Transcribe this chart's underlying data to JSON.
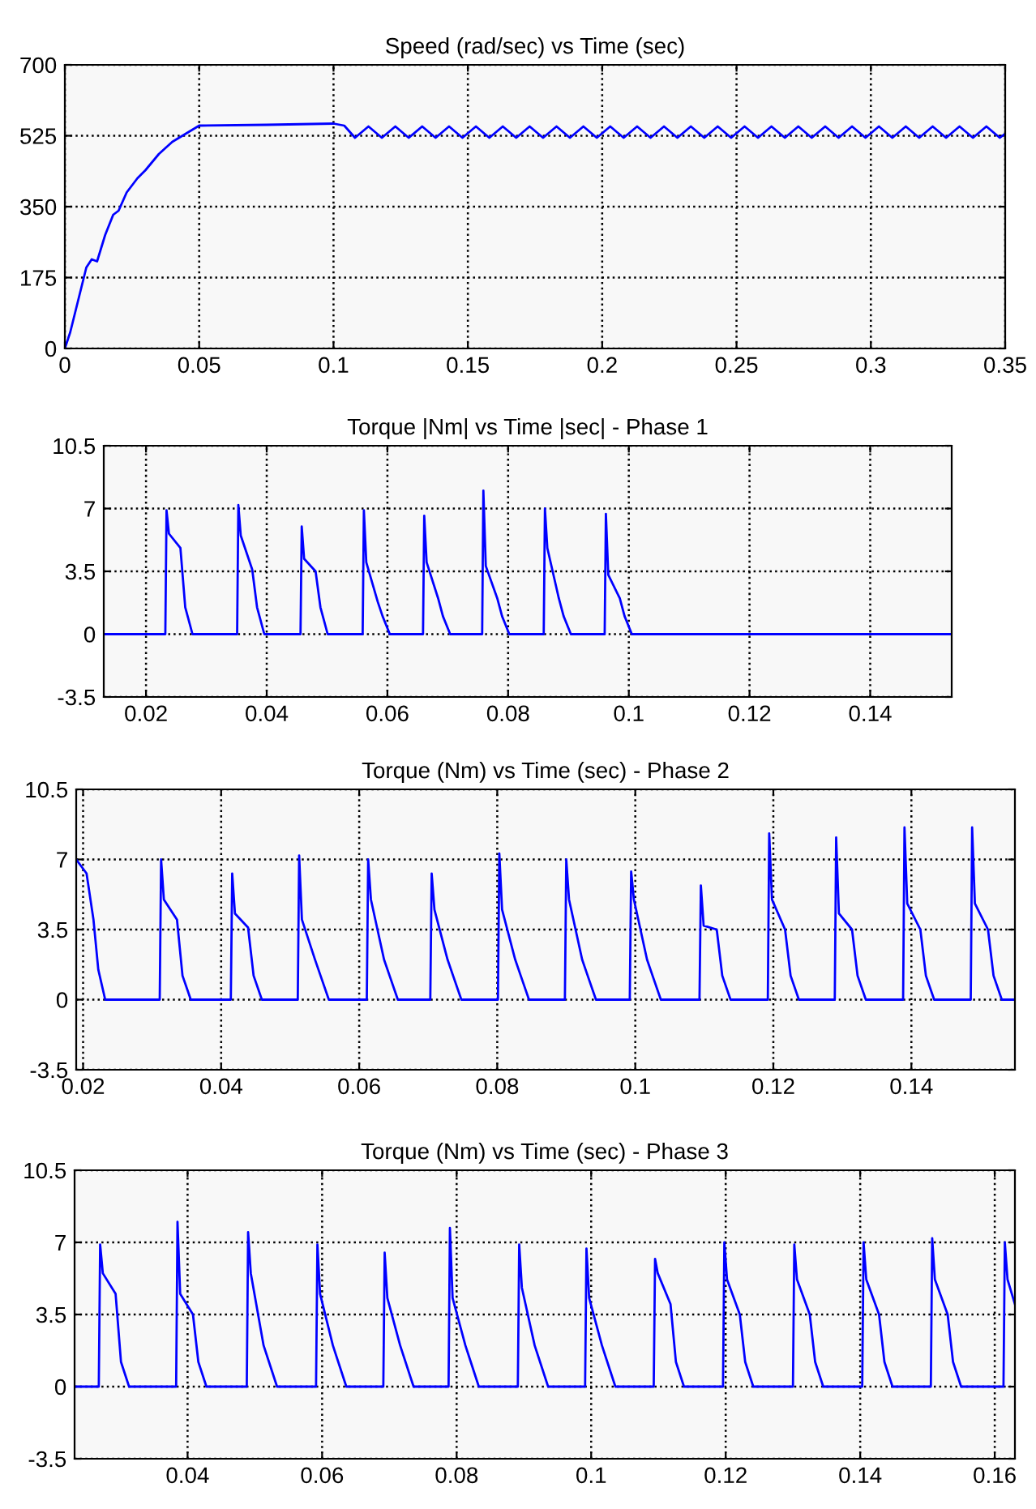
{
  "chart_data": [
    {
      "type": "line",
      "title": "Speed (rad/sec) vs Time (sec)",
      "xlim": [
        0,
        0.35
      ],
      "xticks": [
        0,
        0.05,
        0.1,
        0.15,
        0.2,
        0.25,
        0.3,
        0.35
      ],
      "ylim": [
        0,
        700
      ],
      "yticks": [
        0,
        175,
        350,
        525,
        700
      ],
      "grid": true,
      "series": [
        {
          "color": "#0000ff",
          "x": [
            0,
            0.002,
            0.008,
            0.01,
            0.012,
            0.015,
            0.018,
            0.02,
            0.023,
            0.027,
            0.03,
            0.035,
            0.04,
            0.045,
            0.05,
            0.075,
            0.1,
            0.104,
            0.108,
            0.113,
            0.118,
            0.123,
            0.128,
            0.133,
            0.138,
            0.143,
            0.148,
            0.153,
            0.158,
            0.163,
            0.168,
            0.173,
            0.178,
            0.183,
            0.188,
            0.193,
            0.198,
            0.203,
            0.208,
            0.213,
            0.218,
            0.223,
            0.228,
            0.233,
            0.238,
            0.243,
            0.248,
            0.253,
            0.258,
            0.263,
            0.268,
            0.273,
            0.278,
            0.283,
            0.288,
            0.293,
            0.298,
            0.303,
            0.308,
            0.313,
            0.318,
            0.323,
            0.328,
            0.333,
            0.338,
            0.343,
            0.348,
            0.35
          ],
          "values": [
            0,
            40,
            200,
            220,
            215,
            280,
            330,
            340,
            385,
            420,
            440,
            480,
            510,
            530,
            550,
            552,
            555,
            550,
            520,
            548,
            520,
            548,
            520,
            548,
            520,
            548,
            520,
            548,
            520,
            548,
            520,
            548,
            520,
            548,
            520,
            548,
            520,
            548,
            520,
            548,
            520,
            548,
            520,
            548,
            520,
            548,
            520,
            548,
            520,
            548,
            520,
            548,
            520,
            548,
            520,
            548,
            520,
            548,
            520,
            548,
            520,
            548,
            520,
            548,
            520,
            548,
            520,
            530
          ]
        }
      ]
    },
    {
      "type": "line",
      "title": "Torque |Nm| vs Time |sec| - Phase 1",
      "xlim": [
        0.013,
        0.1535
      ],
      "xticks": [
        0.02,
        0.04,
        0.06,
        0.08,
        0.1,
        0.12,
        0.14
      ],
      "ylim": [
        -3.5,
        10.5
      ],
      "yticks": [
        -3.5,
        0,
        3.5,
        7,
        10.5
      ],
      "grid": true,
      "series": [
        {
          "color": "#0000ff",
          "x": [
            0.013,
            0.0232,
            0.0234,
            0.0238,
            0.0257,
            0.0265,
            0.0277,
            0.0351,
            0.0353,
            0.0357,
            0.0376,
            0.0384,
            0.0396,
            0.0456,
            0.0458,
            0.0462,
            0.0481,
            0.0489,
            0.0501,
            0.0559,
            0.0561,
            0.0565,
            0.0584,
            0.0592,
            0.0604,
            0.0659,
            0.0661,
            0.0665,
            0.0684,
            0.0692,
            0.0704,
            0.0757,
            0.0759,
            0.0763,
            0.0782,
            0.079,
            0.0802,
            0.0859,
            0.0861,
            0.0865,
            0.0884,
            0.0892,
            0.0904,
            0.096,
            0.0962,
            0.0966,
            0.0985,
            0.0993,
            0.1005,
            0.1535
          ],
          "values": [
            0,
            0,
            6.9,
            5.6,
            4.8,
            1.5,
            0,
            0,
            7.2,
            5.5,
            3.6,
            1.5,
            0,
            0,
            6,
            4.2,
            3.5,
            1.5,
            0,
            0,
            6.9,
            4,
            1.8,
            1,
            0,
            0,
            6.6,
            4,
            2,
            1,
            0,
            0,
            8,
            3.8,
            2,
            1,
            0,
            0,
            7,
            4.8,
            2,
            1,
            0,
            0,
            6.7,
            3.3,
            2,
            1,
            0,
            0
          ]
        }
      ]
    },
    {
      "type": "line",
      "title": "Torque (Nm) vs Time (sec) - Phase 2",
      "xlim": [
        0.019,
        0.155
      ],
      "xticks": [
        0.02,
        0.04,
        0.06,
        0.08,
        0.1,
        0.12,
        0.14
      ],
      "ylim": [
        -3.5,
        10.5
      ],
      "yticks": [
        -3.5,
        0,
        3.5,
        7,
        10.5
      ],
      "grid": true,
      "series": [
        {
          "color": "#0000ff",
          "x": [
            0.019,
            0.0205,
            0.0215,
            0.0222,
            0.0232,
            0.0311,
            0.0313,
            0.0317,
            0.0336,
            0.0344,
            0.0356,
            0.0414,
            0.0416,
            0.042,
            0.0439,
            0.0447,
            0.0459,
            0.0511,
            0.0513,
            0.0517,
            0.0536,
            0.0544,
            0.0556,
            0.0611,
            0.0613,
            0.0617,
            0.0636,
            0.0644,
            0.0656,
            0.0703,
            0.0705,
            0.0709,
            0.0728,
            0.0736,
            0.0748,
            0.0801,
            0.0803,
            0.0807,
            0.0826,
            0.0834,
            0.0846,
            0.0898,
            0.09,
            0.0904,
            0.0923,
            0.0931,
            0.0943,
            0.0992,
            0.0994,
            0.0998,
            0.1017,
            0.1025,
            0.1037,
            0.1093,
            0.1095,
            0.1099,
            0.1118,
            0.1126,
            0.1138,
            0.1192,
            0.1194,
            0.1198,
            0.1217,
            0.1225,
            0.1237,
            0.1289,
            0.1291,
            0.1295,
            0.1314,
            0.1322,
            0.1334,
            0.1388,
            0.139,
            0.1394,
            0.1413,
            0.1421,
            0.1433,
            0.1486,
            0.1488,
            0.1492,
            0.1511,
            0.1519,
            0.1531,
            0.155
          ],
          "values": [
            7,
            6.3,
            4,
            1.5,
            0,
            0,
            7,
            5,
            4,
            1.2,
            0,
            0,
            6.3,
            4.3,
            3.6,
            1.2,
            0,
            0,
            7.2,
            4,
            2,
            1.2,
            0,
            0,
            7,
            5,
            2,
            1.2,
            0,
            0,
            6.3,
            4.5,
            2,
            1.2,
            0,
            0,
            7.3,
            4.5,
            2,
            1.2,
            0,
            0,
            7,
            5,
            2,
            1.2,
            0,
            0,
            6.4,
            5,
            2,
            1.2,
            0,
            0,
            5.7,
            3.7,
            3.5,
            1.2,
            0,
            0,
            8.3,
            5,
            3.5,
            1.2,
            0,
            0,
            8.1,
            4.3,
            3.5,
            1.2,
            0,
            0,
            8.6,
            4.8,
            3.5,
            1.2,
            0,
            0,
            8.6,
            4.8,
            3.5,
            1.2,
            0,
            0
          ]
        }
      ]
    },
    {
      "type": "line",
      "title": "Torque (Nm) vs Time (sec) - Phase 3",
      "xlim": [
        0.0232,
        0.163
      ],
      "xticks": [
        0.04,
        0.06,
        0.08,
        0.1,
        0.12,
        0.14,
        0.16
      ],
      "ylim": [
        -3.5,
        10.5
      ],
      "yticks": [
        -3.5,
        0,
        3.5,
        7,
        10.5
      ],
      "grid": true,
      "series": [
        {
          "color": "#0000ff",
          "x": [
            0.0232,
            0.0268,
            0.027,
            0.0274,
            0.0293,
            0.0301,
            0.0313,
            0.0383,
            0.0385,
            0.0389,
            0.0408,
            0.0416,
            0.0428,
            0.0488,
            0.049,
            0.0494,
            0.0513,
            0.0521,
            0.0533,
            0.0591,
            0.0593,
            0.0597,
            0.0616,
            0.0624,
            0.0636,
            0.0691,
            0.0693,
            0.0697,
            0.0716,
            0.0724,
            0.0736,
            0.0788,
            0.079,
            0.0794,
            0.0813,
            0.0821,
            0.0833,
            0.0891,
            0.0893,
            0.0897,
            0.0916,
            0.0924,
            0.0936,
            0.0991,
            0.0993,
            0.0997,
            0.1016,
            0.1024,
            0.1036,
            0.1093,
            0.1095,
            0.1099,
            0.1118,
            0.1126,
            0.1138,
            0.1196,
            0.1198,
            0.1202,
            0.1221,
            0.1229,
            0.1241,
            0.13,
            0.1302,
            0.1306,
            0.1325,
            0.1333,
            0.1345,
            0.1403,
            0.1405,
            0.1409,
            0.1428,
            0.1436,
            0.1448,
            0.1505,
            0.1507,
            0.1511,
            0.153,
            0.1538,
            0.155,
            0.1613,
            0.1615,
            0.1619,
            0.163
          ],
          "values": [
            0,
            0,
            6.9,
            5.5,
            4.5,
            1.2,
            0,
            0,
            8,
            4.5,
            3.5,
            1.2,
            0,
            0,
            7.5,
            5.5,
            2,
            1.2,
            0,
            0,
            6.9,
            4.5,
            2,
            1.2,
            0,
            0,
            6.5,
            4.3,
            2,
            1.2,
            0,
            0,
            7.7,
            4.3,
            2,
            1.2,
            0,
            0,
            6.9,
            4.8,
            2,
            1.2,
            0,
            0,
            6.7,
            4.3,
            2,
            1.2,
            0,
            0,
            6.2,
            5.5,
            4,
            1.2,
            0,
            0,
            7,
            5.2,
            3.5,
            1.2,
            0,
            0,
            6.9,
            5.2,
            3.5,
            1.2,
            0,
            0,
            7,
            5.2,
            3.5,
            1.2,
            0,
            0,
            7.2,
            5.2,
            3.5,
            1.2,
            0,
            0,
            7,
            5.2,
            4
          ]
        }
      ]
    }
  ]
}
